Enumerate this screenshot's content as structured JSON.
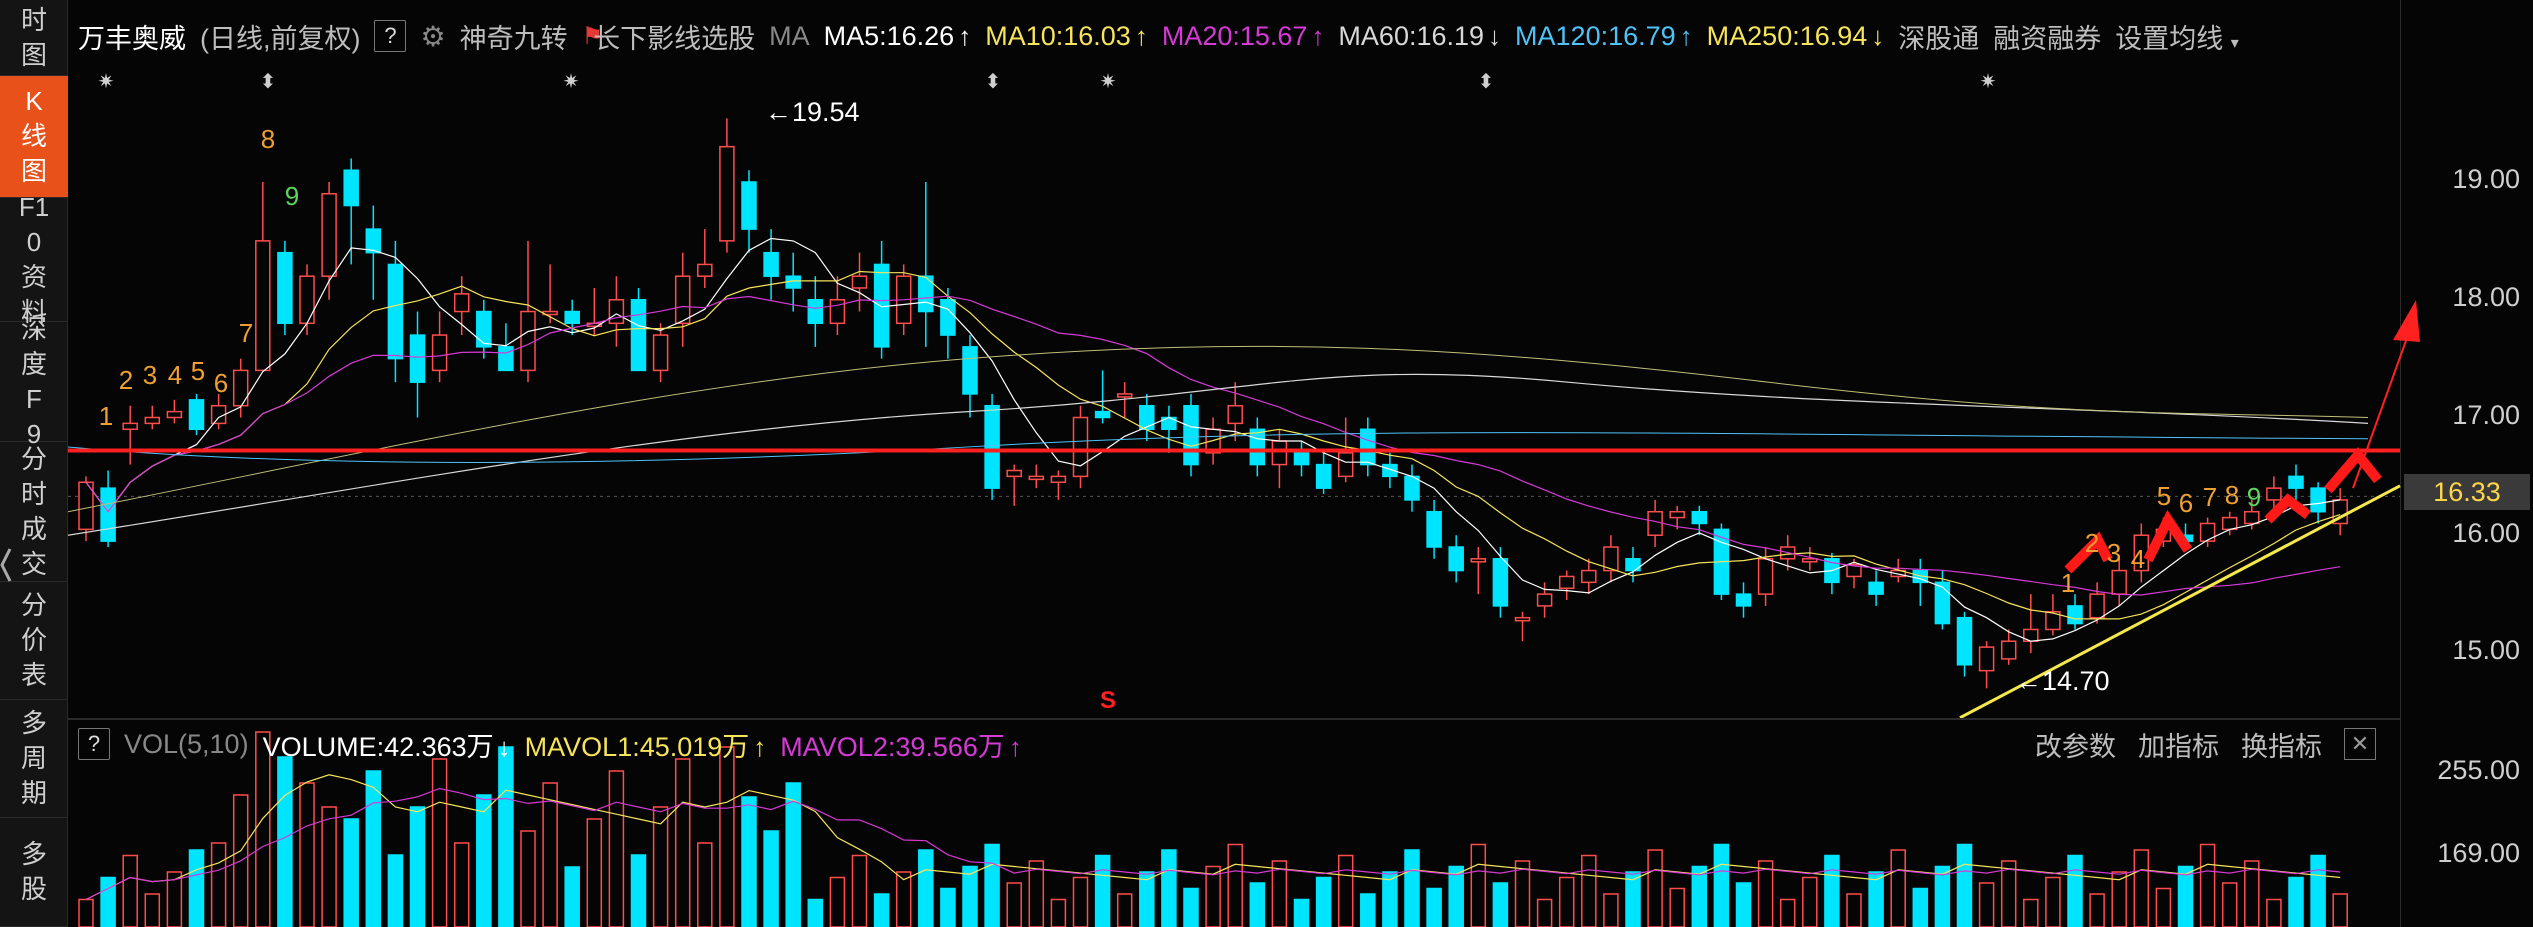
{
  "sidebar": {
    "items": [
      {
        "label": "时图",
        "active": false
      },
      {
        "label": "K线图",
        "active": true
      },
      {
        "label": "F10资料",
        "active": false
      },
      {
        "label": "深度F9",
        "active": false
      },
      {
        "label": "分时成交",
        "active": false
      },
      {
        "label": "分价表",
        "active": false
      },
      {
        "label": "多周期",
        "active": false
      },
      {
        "label": "多股",
        "active": false
      }
    ]
  },
  "header": {
    "stock_name": "万丰奥威",
    "period": "(日线,前复权)",
    "help": "?",
    "indicator1": "神奇九转",
    "indicator2": "长下影线选股",
    "ma_label": "MA",
    "ma_values": [
      {
        "text": "MA5:16.26",
        "arrow": "↑",
        "color": "#ffffff"
      },
      {
        "text": "MA10:16.03",
        "arrow": "↑",
        "color": "#f6e45a"
      },
      {
        "text": "MA20:15.67",
        "arrow": "↑",
        "color": "#d43ad4"
      },
      {
        "text": "MA60:16.19",
        "arrow": "↓",
        "color": "#d8d8d8"
      },
      {
        "text": "MA120:16.79",
        "arrow": "↑",
        "color": "#4fc3f7"
      },
      {
        "text": "MA250:16.94",
        "arrow": "↓",
        "color": "#f6e45a"
      }
    ],
    "links": [
      "深股通",
      "融资融券",
      "设置均线"
    ]
  },
  "price_axis": {
    "ticks": [
      "19.00",
      "18.00",
      "17.00",
      "16.00",
      "15.00"
    ],
    "current": "16.33"
  },
  "annotations": {
    "high": "19.54",
    "low": "14.70",
    "sell_mark": "S",
    "nine_turn_left": [
      "1",
      "2",
      "3",
      "4",
      "5",
      "6",
      "7",
      "8",
      "9"
    ],
    "nine_turn_right": [
      "1",
      "2",
      "3",
      "4",
      "5",
      "6",
      "7",
      "8",
      "9"
    ]
  },
  "volume": {
    "help": "?",
    "label": "VOL(5,10)",
    "volume": "VOLUME:42.363万",
    "volume_arrow": "↓",
    "mavol1": "MAVOL1:45.019万",
    "mavol1_arrow": "↑",
    "mavol2": "MAVOL2:39.566万",
    "mavol2_arrow": "↑",
    "actions": [
      "改参数",
      "加指标",
      "换指标"
    ],
    "close": "✕",
    "ticks": [
      "255.00",
      "169.00"
    ]
  },
  "colors": {
    "up": "#ff4d4d",
    "down": "#00e5ff",
    "ma5": "#ffffff",
    "ma10": "#f6e45a",
    "ma20": "#d43ad4",
    "ma60": "#d8d8d8",
    "ma120": "#4fc3f7",
    "ma250": "#f6e45a",
    "support_line": "#ff2020",
    "trend_line": "#f4e84a",
    "active_tab": "#e8511a"
  }
}
